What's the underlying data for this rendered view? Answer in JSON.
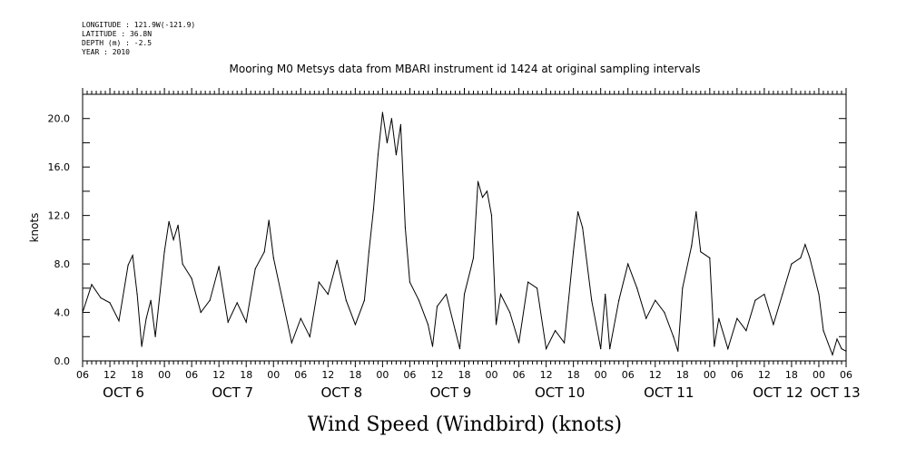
{
  "header": {
    "meta_lines": [
      "LONGITUDE : 121.9W(-121.9)",
      "LATITUDE : 36.8N",
      "DEPTH (m) : -2.5",
      "YEAR : 2010"
    ]
  },
  "chart_data": {
    "type": "line",
    "title": "Mooring M0 Metsys data from MBARI instrument id 1424 at original sampling intervals",
    "xlabel": "Wind Speed (Windbird) (knots)",
    "ylabel": "knots",
    "ylim": [
      0,
      22
    ],
    "yticks": [
      0.0,
      4.0,
      8.0,
      12.0,
      16.0,
      20.0
    ],
    "ytick_labels": [
      "0.0",
      "4.0",
      "8.0",
      "12.0",
      "16.0",
      "20.0"
    ],
    "x_start": "OCT 6 06:00",
    "x_end": "OCT 13 06:00",
    "hour_tick_labels": [
      "06",
      "12",
      "18",
      "00",
      "06",
      "12",
      "18",
      "00",
      "06",
      "12",
      "18",
      "00",
      "06",
      "12",
      "18",
      "00",
      "06",
      "12",
      "18",
      "00",
      "06",
      "12",
      "18",
      "00",
      "06",
      "12",
      "18",
      "00",
      "06"
    ],
    "date_labels": [
      "OCT  6",
      "OCT  7",
      "OCT  8",
      "OCT  9",
      "OCT 10",
      "OCT 11",
      "OCT 12",
      "OCT 13"
    ],
    "grid": false,
    "series": [
      {
        "color": "#000000",
        "points": [
          [
            "OCT 6 06:00",
            4.0
          ],
          [
            "OCT 6 08:00",
            6.3
          ],
          [
            "OCT 6 10:00",
            5.2
          ],
          [
            "OCT 6 12:00",
            4.8
          ],
          [
            "OCT 6 14:00",
            3.3
          ],
          [
            "OCT 6 16:00",
            7.9
          ],
          [
            "OCT 6 17:00",
            8.7
          ],
          [
            "OCT 6 18:00",
            5.5
          ],
          [
            "OCT 6 19:00",
            1.2
          ],
          [
            "OCT 6 20:00",
            3.5
          ],
          [
            "OCT 6 21:00",
            5.0
          ],
          [
            "OCT 6 22:00",
            2.0
          ],
          [
            "OCT 7 00:00",
            9.0
          ],
          [
            "OCT 7 01:00",
            11.5
          ],
          [
            "OCT 7 02:00",
            10.0
          ],
          [
            "OCT 7 03:00",
            11.2
          ],
          [
            "OCT 7 04:00",
            8.0
          ],
          [
            "OCT 7 06:00",
            6.8
          ],
          [
            "OCT 7 08:00",
            4.0
          ],
          [
            "OCT 7 10:00",
            5.0
          ],
          [
            "OCT 7 12:00",
            7.8
          ],
          [
            "OCT 7 14:00",
            3.2
          ],
          [
            "OCT 7 16:00",
            4.8
          ],
          [
            "OCT 7 18:00",
            3.2
          ],
          [
            "OCT 7 20:00",
            7.6
          ],
          [
            "OCT 7 22:00",
            9.0
          ],
          [
            "OCT 7 23:00",
            11.6
          ],
          [
            "OCT 8 00:00",
            8.5
          ],
          [
            "OCT 8 02:00",
            5.0
          ],
          [
            "OCT 8 04:00",
            1.5
          ],
          [
            "OCT 8 06:00",
            3.5
          ],
          [
            "OCT 8 08:00",
            2.0
          ],
          [
            "OCT 8 10:00",
            6.5
          ],
          [
            "OCT 8 12:00",
            5.5
          ],
          [
            "OCT 8 14:00",
            8.3
          ],
          [
            "OCT 8 16:00",
            5.0
          ],
          [
            "OCT 8 18:00",
            3.0
          ],
          [
            "OCT 8 20:00",
            5.0
          ],
          [
            "OCT 8 21:00",
            9.0
          ],
          [
            "OCT 8 22:00",
            12.5
          ],
          [
            "OCT 8 23:00",
            17.0
          ],
          [
            "OCT 9 00:00",
            20.5
          ],
          [
            "OCT 9 01:00",
            18.0
          ],
          [
            "OCT 9 02:00",
            20.0
          ],
          [
            "OCT 9 03:00",
            17.0
          ],
          [
            "OCT 9 04:00",
            19.5
          ],
          [
            "OCT 9 05:00",
            11.0
          ],
          [
            "OCT 9 06:00",
            6.5
          ],
          [
            "OCT 9 08:00",
            5.0
          ],
          [
            "OCT 9 10:00",
            3.0
          ],
          [
            "OCT 9 11:00",
            1.2
          ],
          [
            "OCT 9 12:00",
            4.5
          ],
          [
            "OCT 9 14:00",
            5.5
          ],
          [
            "OCT 9 16:00",
            2.5
          ],
          [
            "OCT 9 17:00",
            1.0
          ],
          [
            "OCT 9 18:00",
            5.5
          ],
          [
            "OCT 9 20:00",
            8.5
          ],
          [
            "OCT 9 21:00",
            14.8
          ],
          [
            "OCT 9 22:00",
            13.5
          ],
          [
            "OCT 9 23:00",
            14.0
          ],
          [
            "OCT 10 00:00",
            12.0
          ],
          [
            "OCT 10 01:00",
            3.0
          ],
          [
            "OCT 10 02:00",
            5.5
          ],
          [
            "OCT 10 04:00",
            4.0
          ],
          [
            "OCT 10 06:00",
            1.5
          ],
          [
            "OCT 10 08:00",
            6.5
          ],
          [
            "OCT 10 10:00",
            6.0
          ],
          [
            "OCT 10 12:00",
            1.0
          ],
          [
            "OCT 10 14:00",
            2.5
          ],
          [
            "OCT 10 16:00",
            1.5
          ],
          [
            "OCT 10 18:00",
            9.0
          ],
          [
            "OCT 10 19:00",
            12.3
          ],
          [
            "OCT 10 20:00",
            11.0
          ],
          [
            "OCT 10 22:00",
            5.0
          ],
          [
            "OCT 11 00:00",
            1.0
          ],
          [
            "OCT 11 01:00",
            5.5
          ],
          [
            "OCT 11 02:00",
            1.0
          ],
          [
            "OCT 11 04:00",
            5.0
          ],
          [
            "OCT 11 06:00",
            8.0
          ],
          [
            "OCT 11 08:00",
            6.0
          ],
          [
            "OCT 11 10:00",
            3.5
          ],
          [
            "OCT 11 12:00",
            5.0
          ],
          [
            "OCT 11 14:00",
            4.0
          ],
          [
            "OCT 11 16:00",
            2.0
          ],
          [
            "OCT 11 17:00",
            0.8
          ],
          [
            "OCT 11 18:00",
            6.0
          ],
          [
            "OCT 11 20:00",
            9.5
          ],
          [
            "OCT 11 21:00",
            12.3
          ],
          [
            "OCT 11 22:00",
            9.0
          ],
          [
            "OCT 12 00:00",
            8.5
          ],
          [
            "OCT 12 01:00",
            1.2
          ],
          [
            "OCT 12 02:00",
            3.5
          ],
          [
            "OCT 12 04:00",
            1.0
          ],
          [
            "OCT 12 06:00",
            3.5
          ],
          [
            "OCT 12 08:00",
            2.5
          ],
          [
            "OCT 12 10:00",
            5.0
          ],
          [
            "OCT 12 12:00",
            5.5
          ],
          [
            "OCT 12 14:00",
            3.0
          ],
          [
            "OCT 12 16:00",
            5.5
          ],
          [
            "OCT 12 18:00",
            8.0
          ],
          [
            "OCT 12 20:00",
            8.5
          ],
          [
            "OCT 12 21:00",
            9.6
          ],
          [
            "OCT 12 22:00",
            8.5
          ],
          [
            "OCT 13 00:00",
            5.5
          ],
          [
            "OCT 13 01:00",
            2.5
          ],
          [
            "OCT 13 02:00",
            1.5
          ],
          [
            "OCT 13 03:00",
            0.5
          ],
          [
            "OCT 13 04:00",
            1.8
          ],
          [
            "OCT 13 05:00",
            1.0
          ],
          [
            "OCT 13 06:00",
            0.8
          ]
        ]
      }
    ]
  }
}
